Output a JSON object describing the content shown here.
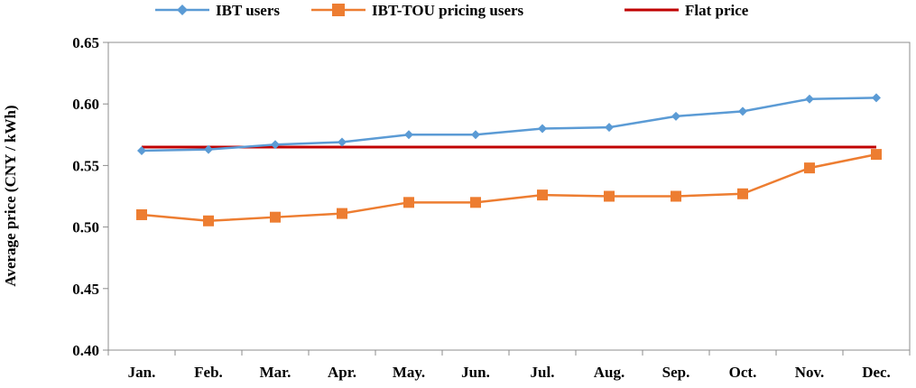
{
  "chart_data": {
    "type": "line",
    "title": "",
    "xlabel": "",
    "ylabel": "Average price (CNY / kWh)",
    "categories": [
      "Jan.",
      "Feb.",
      "Mar.",
      "Apr.",
      "May.",
      "Jun.",
      "Jul.",
      "Aug.",
      "Sep.",
      "Oct.",
      "Nov.",
      "Dec."
    ],
    "ylim": [
      0.4,
      0.65
    ],
    "yticks": [
      "0.40",
      "0.45",
      "0.50",
      "0.55",
      "0.60",
      "0.65"
    ],
    "grid": false,
    "legend_position": "top",
    "series": [
      {
        "name": "IBT users",
        "color": "#5B9BD5",
        "marker": "diamond",
        "values": [
          0.562,
          0.563,
          0.567,
          0.569,
          0.575,
          0.575,
          0.58,
          0.581,
          0.59,
          0.594,
          0.604,
          0.605
        ]
      },
      {
        "name": "IBT-TOU pricing  users",
        "color": "#ED7D31",
        "marker": "square",
        "values": [
          0.51,
          0.505,
          0.508,
          0.511,
          0.52,
          0.52,
          0.526,
          0.525,
          0.525,
          0.527,
          0.548,
          0.559
        ]
      },
      {
        "name": "Flat price",
        "color": "#C00000",
        "marker": "none",
        "values": [
          0.565,
          0.565,
          0.565,
          0.565,
          0.565,
          0.565,
          0.565,
          0.565,
          0.565,
          0.565,
          0.565,
          0.565
        ]
      }
    ]
  }
}
